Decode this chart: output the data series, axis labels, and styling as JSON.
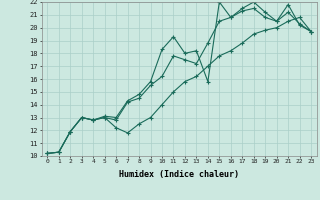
{
  "xlabel": "Humidex (Indice chaleur)",
  "ylabel": "",
  "background_color": "#cce8e0",
  "grid_color": "#aacfc8",
  "line_color": "#1a6b5a",
  "xlim": [
    -0.5,
    23.5
  ],
  "ylim": [
    10,
    22
  ],
  "xticks": [
    0,
    1,
    2,
    3,
    4,
    5,
    6,
    7,
    8,
    9,
    10,
    11,
    12,
    13,
    14,
    15,
    16,
    17,
    18,
    19,
    20,
    21,
    22,
    23
  ],
  "yticks": [
    10,
    11,
    12,
    13,
    14,
    15,
    16,
    17,
    18,
    19,
    20,
    21,
    22
  ],
  "series": [
    {
      "x": [
        0,
        1,
        2,
        3,
        4,
        5,
        6,
        7,
        8,
        9,
        10,
        11,
        12,
        13,
        14,
        15,
        16,
        17,
        18,
        19,
        20,
        21,
        22,
        23
      ],
      "y": [
        10.2,
        10.3,
        11.9,
        13.0,
        12.8,
        13.1,
        13.0,
        14.3,
        14.8,
        15.8,
        18.3,
        19.3,
        18.0,
        18.2,
        15.8,
        22.0,
        20.8,
        21.5,
        22.0,
        21.2,
        20.5,
        21.8,
        20.2,
        19.7
      ]
    },
    {
      "x": [
        0,
        1,
        2,
        3,
        4,
        5,
        6,
        7,
        8,
        9,
        10,
        11,
        12,
        13,
        14,
        15,
        16,
        17,
        18,
        19,
        20,
        21,
        22,
        23
      ],
      "y": [
        10.2,
        10.3,
        11.9,
        13.0,
        12.8,
        13.0,
        12.8,
        14.2,
        14.5,
        15.5,
        16.2,
        17.8,
        17.5,
        17.2,
        18.8,
        20.5,
        20.8,
        21.3,
        21.5,
        20.8,
        20.5,
        21.2,
        20.3,
        19.7
      ]
    },
    {
      "x": [
        0,
        1,
        2,
        3,
        4,
        5,
        6,
        7,
        8,
        9,
        10,
        11,
        12,
        13,
        14,
        15,
        16,
        17,
        18,
        19,
        20,
        21,
        22,
        23
      ],
      "y": [
        10.2,
        10.3,
        11.9,
        13.0,
        12.8,
        13.0,
        12.2,
        11.8,
        12.5,
        13.0,
        14.0,
        15.0,
        15.8,
        16.2,
        17.0,
        17.8,
        18.2,
        18.8,
        19.5,
        19.8,
        20.0,
        20.5,
        20.8,
        19.7
      ]
    }
  ]
}
